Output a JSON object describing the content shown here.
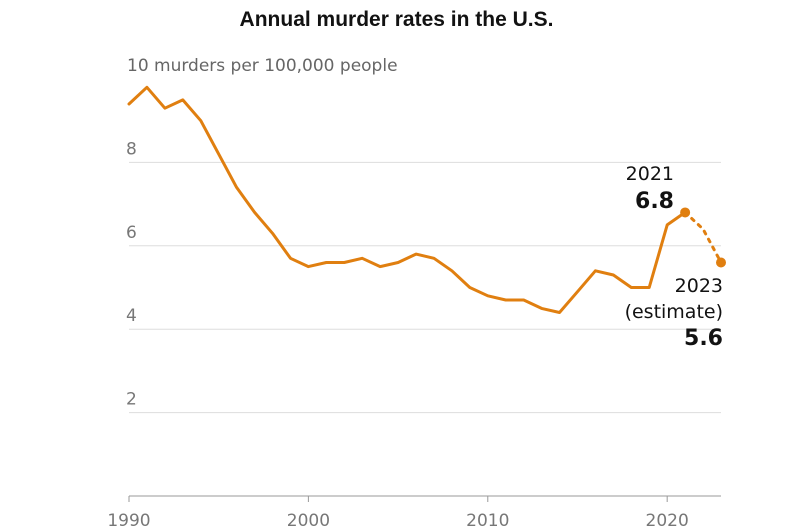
{
  "chart_data": {
    "type": "line",
    "title": "Annual murder rates in the U.S.",
    "ylabel": "10 murders per 100,000 people",
    "xlabel": "",
    "ylim": [
      0,
      10
    ],
    "xlim": [
      1990,
      2023
    ],
    "yticks": [
      2,
      4,
      6,
      8
    ],
    "xticks": [
      1990,
      2000,
      2010,
      2020
    ],
    "series": [
      {
        "style": "solid",
        "x": [
          1990,
          1991,
          1992,
          1993,
          1994,
          1995,
          1996,
          1997,
          1998,
          1999,
          2000,
          2001,
          2002,
          2003,
          2004,
          2005,
          2006,
          2007,
          2008,
          2009,
          2010,
          2011,
          2012,
          2013,
          2014,
          2015,
          2016,
          2017,
          2018,
          2019,
          2020,
          2021
        ],
        "y": [
          9.4,
          9.8,
          9.3,
          9.5,
          9.0,
          8.2,
          7.4,
          6.8,
          6.3,
          5.7,
          5.5,
          5.6,
          5.6,
          5.7,
          5.5,
          5.6,
          5.8,
          5.7,
          5.4,
          5.0,
          4.8,
          4.7,
          4.7,
          4.5,
          4.4,
          4.9,
          5.4,
          5.3,
          5.0,
          5.0,
          6.5,
          6.8
        ]
      },
      {
        "style": "dotted",
        "x": [
          2021,
          2022,
          2023
        ],
        "y": [
          6.8,
          6.4,
          5.6
        ]
      }
    ],
    "annotations": [
      {
        "x": 2021,
        "y": 6.8,
        "year_label": "2021",
        "value_label": "6.8"
      },
      {
        "x": 2023,
        "y": 5.6,
        "year_label": "2023",
        "note": "(estimate)",
        "value_label": "5.6"
      }
    ],
    "colors": {
      "line": "#e07f10",
      "grid": "#dddddd",
      "axis": "#999999"
    }
  }
}
